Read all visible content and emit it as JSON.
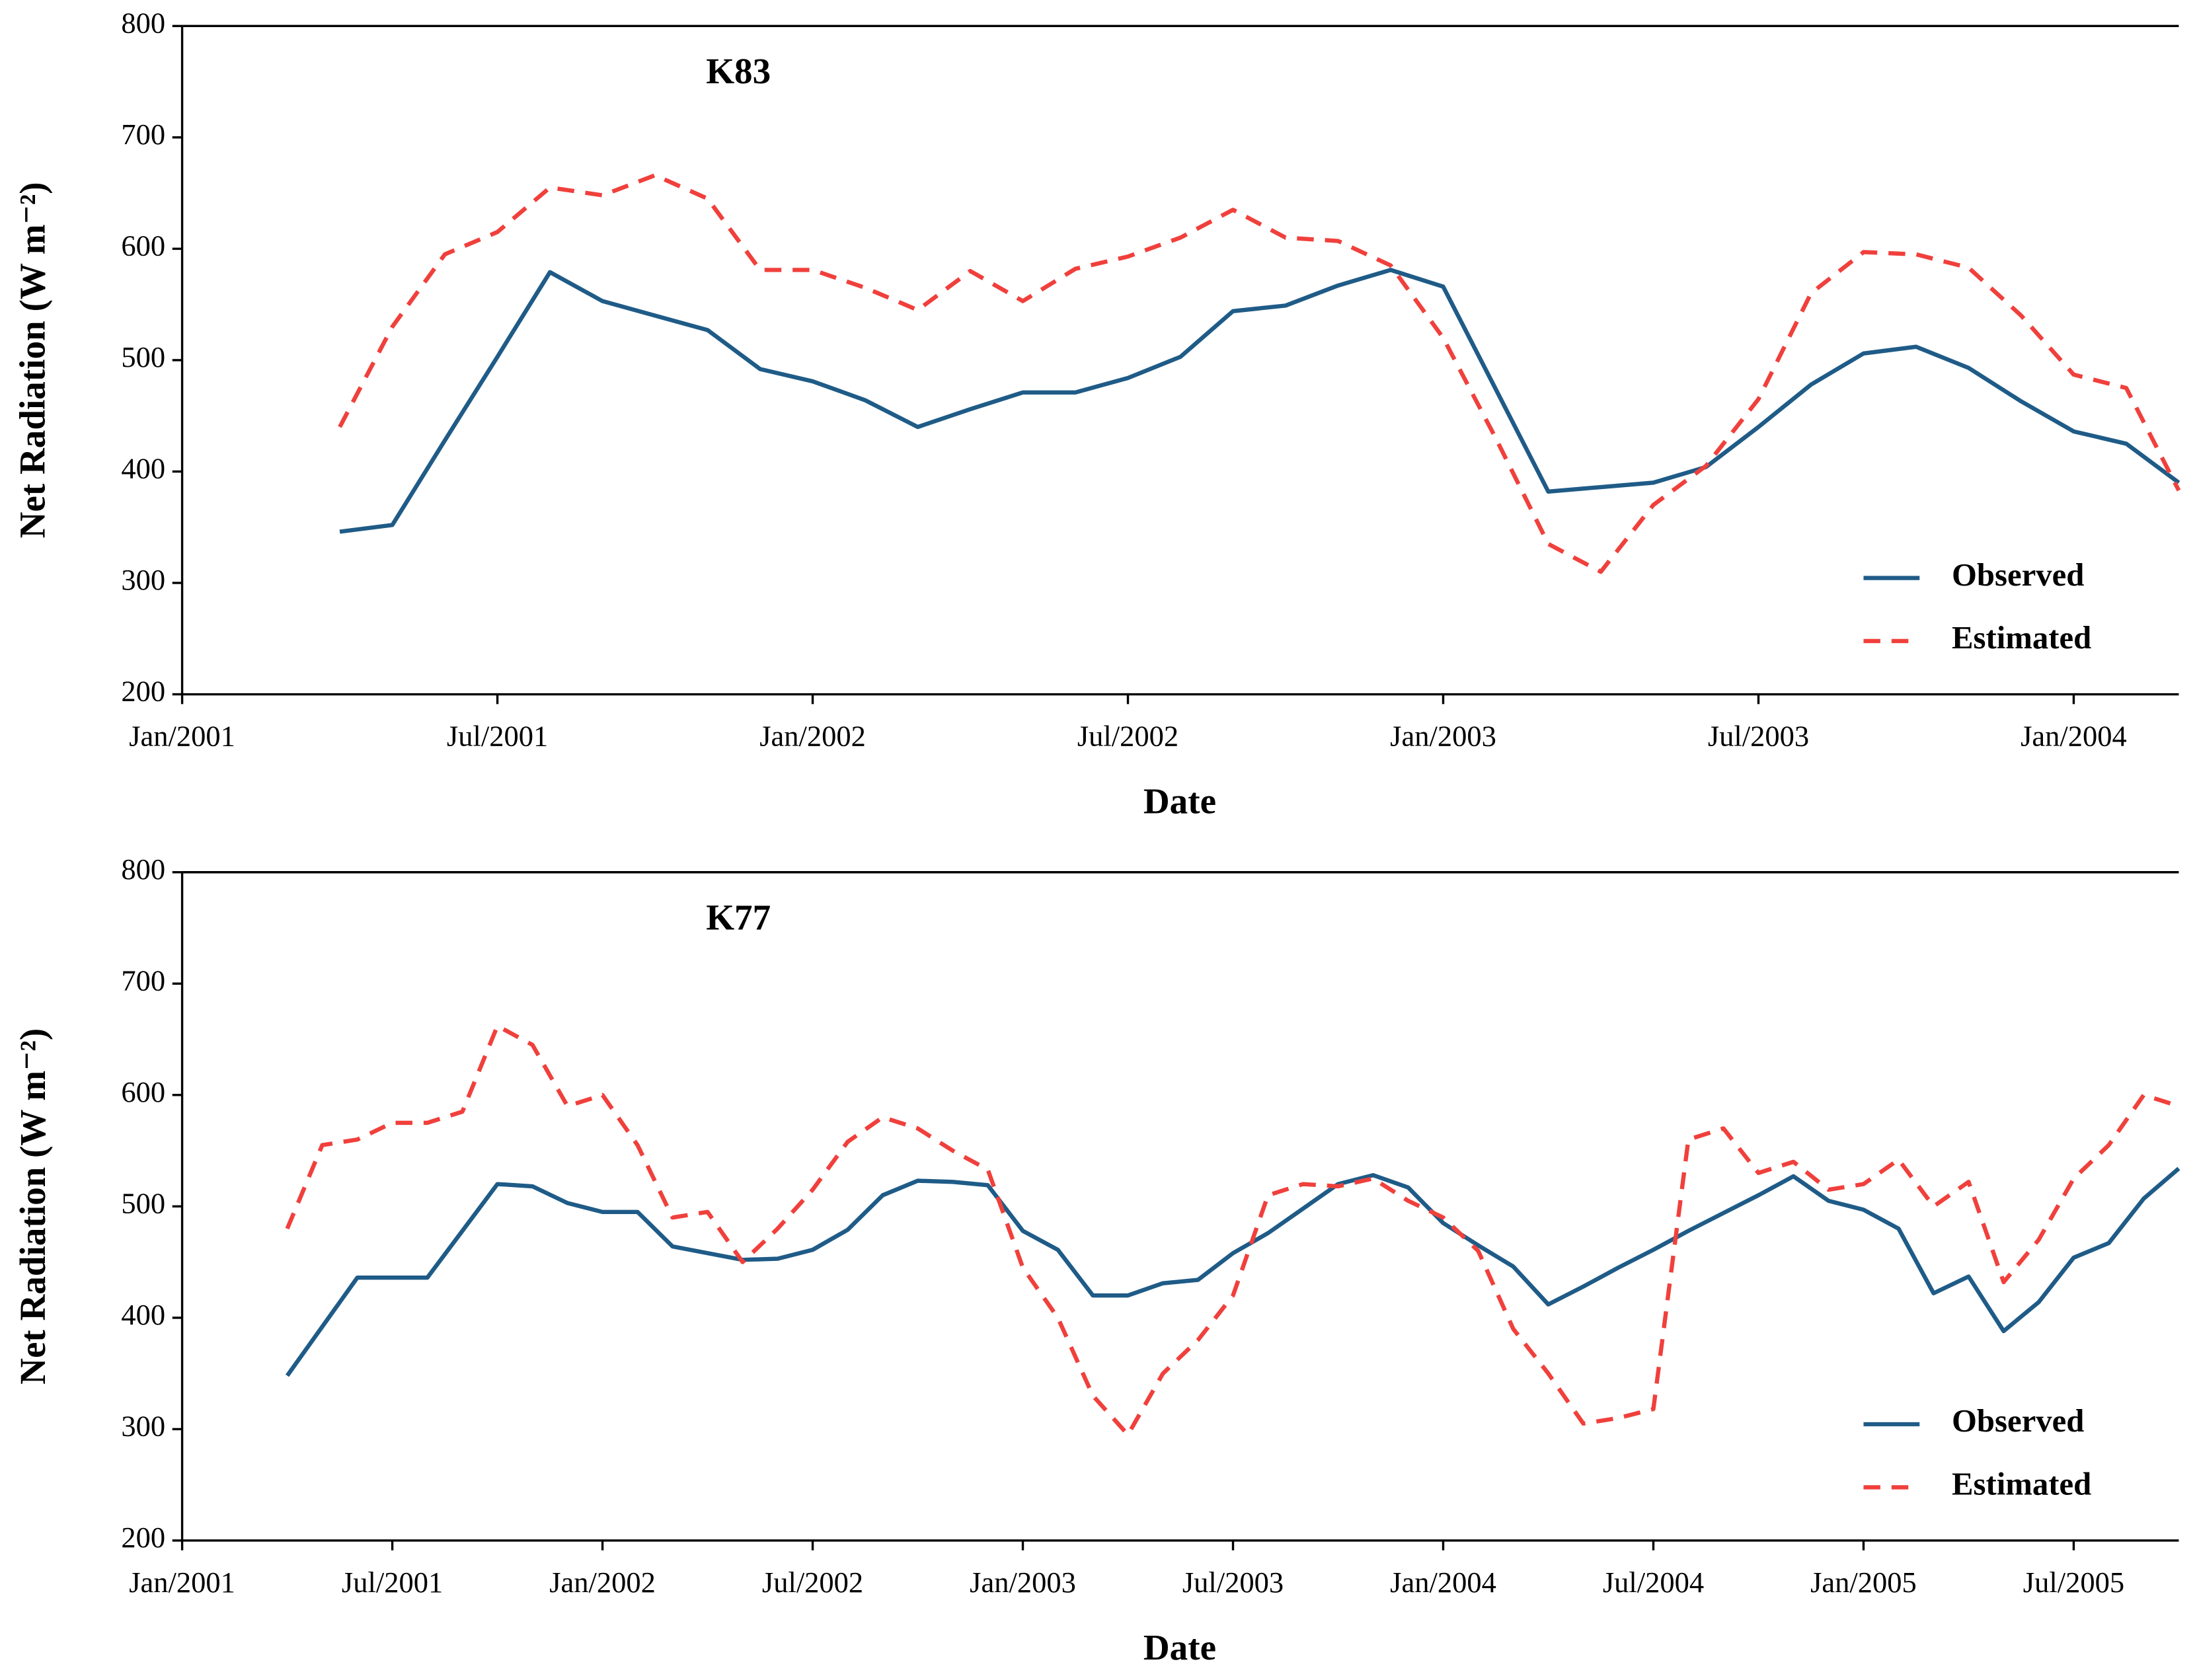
{
  "chart_data": [
    {
      "type": "line",
      "title": "K83",
      "x_label": "Date",
      "y_label": "Net Radiation (W m⁻²)",
      "x": [
        "2001-04",
        "2001-05",
        "2001-06",
        "2001-07",
        "2001-08",
        "2001-09",
        "2001-10",
        "2001-11",
        "2001-12",
        "2002-01",
        "2002-02",
        "2002-03",
        "2002-04",
        "2002-05",
        "2002-06",
        "2002-07",
        "2002-08",
        "2002-09",
        "2002-10",
        "2002-11",
        "2002-12",
        "2003-01",
        "2003-02",
        "2003-03",
        "2003-04",
        "2003-05",
        "2003-06",
        "2003-07",
        "2003-08",
        "2003-09",
        "2003-10",
        "2003-11",
        "2003-12",
        "2004-01",
        "2004-02",
        "2004-03"
      ],
      "series": [
        {
          "name": "Observed",
          "color": "#1f5b87",
          "dashed": false,
          "values": [
            346,
            352,
            428,
            503,
            579,
            553,
            540,
            527,
            492,
            481,
            464,
            440,
            456,
            471,
            471,
            484,
            503,
            544,
            549,
            567,
            581,
            566,
            474,
            382,
            386,
            390,
            404,
            440,
            478,
            506,
            512,
            493,
            463,
            436,
            425,
            390
          ]
        },
        {
          "name": "Estimated",
          "color": "#f0403c",
          "dashed": true,
          "values": [
            440,
            530,
            595,
            615,
            655,
            648,
            666,
            645,
            581,
            581,
            565,
            545,
            580,
            553,
            582,
            593,
            610,
            635,
            610,
            607,
            585,
            520,
            430,
            335,
            310,
            370,
            405,
            465,
            560,
            597,
            595,
            583,
            540,
            487,
            475,
            383
          ]
        }
      ],
      "xlim": [
        "2001-01",
        "2004-03"
      ],
      "xticks": [
        {
          "value": "2001-01",
          "label": "Jan/2001"
        },
        {
          "value": "2001-07",
          "label": "Jul/2001"
        },
        {
          "value": "2002-01",
          "label": "Jan/2002"
        },
        {
          "value": "2002-07",
          "label": "Jul/2002"
        },
        {
          "value": "2003-01",
          "label": "Jan/2003"
        },
        {
          "value": "2003-07",
          "label": "Jul/2003"
        },
        {
          "value": "2004-01",
          "label": "Jan/2004"
        }
      ],
      "ylim": [
        200,
        800
      ],
      "yticks": [
        200,
        300,
        400,
        500,
        600,
        700,
        800
      ],
      "legend": "lower right"
    },
    {
      "type": "line",
      "title": "K77",
      "x_label": "Date",
      "y_label": "Net Radiation (W m⁻²)",
      "x": [
        "2001-04",
        "2001-05",
        "2001-06",
        "2001-07",
        "2001-08",
        "2001-09",
        "2001-10",
        "2001-11",
        "2001-12",
        "2002-01",
        "2002-02",
        "2002-03",
        "2002-04",
        "2002-05",
        "2002-06",
        "2002-07",
        "2002-08",
        "2002-09",
        "2002-10",
        "2002-11",
        "2002-12",
        "2003-01",
        "2003-02",
        "2003-03",
        "2003-04",
        "2003-05",
        "2003-06",
        "2003-07",
        "2003-08",
        "2003-09",
        "2003-10",
        "2003-11",
        "2003-12",
        "2004-01",
        "2004-02",
        "2004-03",
        "2004-04",
        "2004-05",
        "2004-06",
        "2004-07",
        "2004-08",
        "2004-09",
        "2004-10",
        "2004-11",
        "2004-12",
        "2005-01",
        "2005-02",
        "2005-03",
        "2005-04",
        "2005-05",
        "2005-06",
        "2005-07",
        "2005-08",
        "2005-09",
        "2005-10"
      ],
      "series": [
        {
          "name": "Observed",
          "color": "#1f5b87",
          "dashed": false,
          "values": [
            348,
            392,
            436,
            436,
            436,
            478,
            520,
            518,
            503,
            495,
            495,
            464,
            458,
            452,
            453,
            461,
            479,
            510,
            523,
            522,
            519,
            478,
            461,
            420,
            420,
            431,
            434,
            458,
            476,
            498,
            520,
            528,
            517,
            485,
            465,
            446,
            412,
            428,
            445,
            461,
            478,
            494,
            510,
            527,
            505,
            497,
            480,
            422,
            437,
            388,
            414,
            454,
            467,
            507,
            534
          ]
        },
        {
          "name": "Estimated",
          "color": "#f0403c",
          "dashed": true,
          "values": [
            480,
            555,
            560,
            575,
            575,
            585,
            662,
            645,
            590,
            600,
            555,
            490,
            495,
            450,
            480,
            515,
            558,
            580,
            570,
            550,
            533,
            445,
            400,
            330,
            295,
            350,
            380,
            420,
            510,
            520,
            518,
            525,
            505,
            490,
            460,
            390,
            350,
            305,
            310,
            318,
            560,
            570,
            530,
            540,
            515,
            520,
            542,
            500,
            522,
            432,
            470,
            525,
            555,
            600,
            590
          ]
        }
      ],
      "xlim": [
        "2001-01",
        "2005-10"
      ],
      "xticks": [
        {
          "value": "2001-01",
          "label": "Jan/2001"
        },
        {
          "value": "2001-07",
          "label": "Jul/2001"
        },
        {
          "value": "2002-01",
          "label": "Jan/2002"
        },
        {
          "value": "2002-07",
          "label": "Jul/2002"
        },
        {
          "value": "2003-01",
          "label": "Jan/2003"
        },
        {
          "value": "2003-07",
          "label": "Jul/2003"
        },
        {
          "value": "2004-01",
          "label": "Jan/2004"
        },
        {
          "value": "2004-07",
          "label": "Jul/2004"
        },
        {
          "value": "2005-01",
          "label": "Jan/2005"
        },
        {
          "value": "2005-07",
          "label": "Jul/2005"
        }
      ],
      "ylim": [
        200,
        800
      ],
      "yticks": [
        200,
        300,
        400,
        500,
        600,
        700,
        800
      ],
      "legend": "lower right"
    }
  ]
}
